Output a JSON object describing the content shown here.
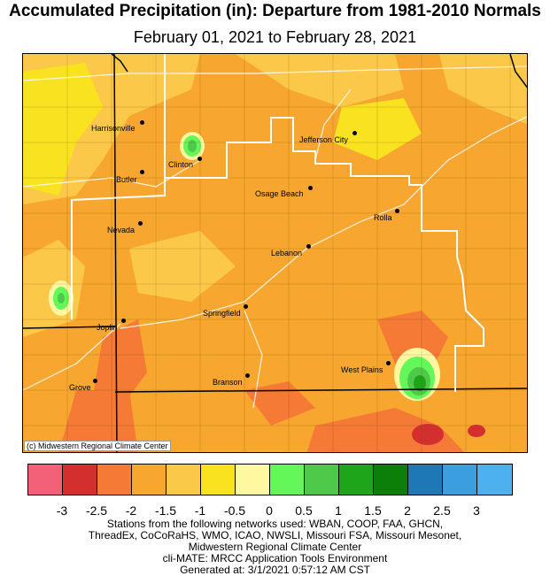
{
  "title": "Accumulated Precipitation (in): Departure from 1981-2010 Normals",
  "subtitle": "February 01, 2021 to February 28, 2021",
  "credit": "(c) Midwestern Regional Climate Center",
  "cities": [
    {
      "name": "Harrisonville"
    },
    {
      "name": "Clinton"
    },
    {
      "name": "Butler"
    },
    {
      "name": "Jefferson City"
    },
    {
      "name": "Osage Beach"
    },
    {
      "name": "Rolla"
    },
    {
      "name": "Nevada"
    },
    {
      "name": "Lebanon"
    },
    {
      "name": "Springfield"
    },
    {
      "name": "Joplin"
    },
    {
      "name": "West Plains"
    },
    {
      "name": "Branson"
    },
    {
      "name": "Grove"
    }
  ],
  "legend": {
    "colors": [
      "#f26178",
      "#d32f2f",
      "#f47a35",
      "#f7a72f",
      "#fcc849",
      "#f9e21f",
      "#fff8a0",
      "#63f75a",
      "#4fc94a",
      "#1ea51a",
      "#0b7f0a",
      "#1e78b6",
      "#3a9edf",
      "#4db0ef"
    ],
    "ticks": [
      "-3",
      "-2.5",
      "-2",
      "-1.5",
      "-1",
      "-0.5",
      "0",
      "0.5",
      "1",
      "1.5",
      "2",
      "2.5",
      "3"
    ]
  },
  "footer": [
    "Stations from the following networks used: WBAN, COOP, FAA, GHCN,",
    "ThreadEx, CoCoRaHS, WMO, ICAO, NWSLI, Missouri FSA, Missouri Mesonet,",
    "Midwestern Regional Climate Center",
    "cli-MATE: MRCC Application Tools Environment",
    "Generated at: 3/1/2021 0:57:12 AM CST"
  ]
}
